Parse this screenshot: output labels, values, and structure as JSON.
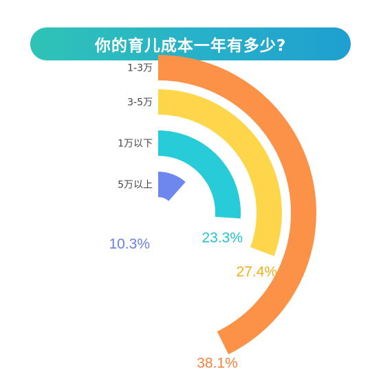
{
  "title": "你的育儿成本一年有多少?",
  "chart_data": {
    "type": "radial_bar",
    "title": "你的育儿成本一年有多少?",
    "categories": [
      "1-3万",
      "3-5万",
      "1万以下",
      "5万以上"
    ],
    "values": [
      38.1,
      27.4,
      23.3,
      10.3
    ],
    "value_labels": [
      "38.1%",
      "27.4%",
      "23.3%",
      "10.3%"
    ],
    "colors": [
      "#fc9248",
      "#fed64a",
      "#28cbd8",
      "#6e87ee"
    ],
    "label_colors": [
      "#f5813a",
      "#f3ae1c",
      "#22c2cf",
      "#6a7fe8"
    ],
    "unit": "%"
  }
}
